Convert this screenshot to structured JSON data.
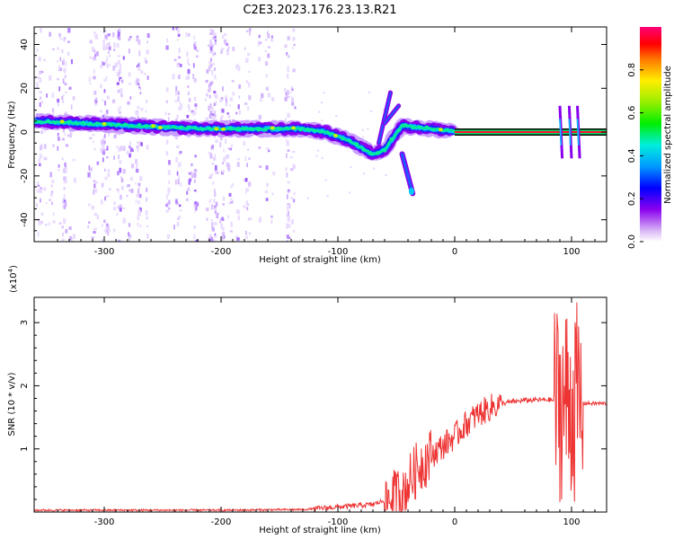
{
  "title": "C2E3.2023.176.23.13.R21",
  "chart_data": [
    {
      "type": "heatmap",
      "xlabel": "Height of straight line (km)",
      "ylabel": "Frequency (Hz)",
      "xlim": [
        -360,
        130
      ],
      "ylim": [
        -50,
        48
      ],
      "x_ticks": [
        -300,
        -200,
        -100,
        0,
        100
      ],
      "y_ticks": [
        -40,
        -20,
        0,
        20,
        40
      ],
      "colorbar": {
        "label": "Normalized spectral amplitude",
        "range": [
          0,
          1
        ],
        "ticks": [
          "0.0",
          "0.2",
          "0.4",
          "0.6",
          "0.8"
        ],
        "colormap": "rainbow (white-purple-blue-cyan-green-yellow-red-magenta)"
      },
      "carrier_trace": [
        {
          "x": -360,
          "y": 5
        },
        {
          "x": -320,
          "y": 4
        },
        {
          "x": -280,
          "y": 3
        },
        {
          "x": -240,
          "y": 2
        },
        {
          "x": -200,
          "y": 1.5
        },
        {
          "x": -160,
          "y": 1.5
        },
        {
          "x": -130,
          "y": 1.5
        },
        {
          "x": -110,
          "y": 0
        },
        {
          "x": -90,
          "y": -4
        },
        {
          "x": -70,
          "y": -10
        },
        {
          "x": -60,
          "y": -8
        },
        {
          "x": -45,
          "y": 3
        },
        {
          "x": -30,
          "y": 2
        },
        {
          "x": -10,
          "y": 1
        },
        {
          "x": 0,
          "y": 0.5
        },
        {
          "x": 130,
          "y": 0
        }
      ],
      "noise_region_x": [
        -360,
        -135
      ]
    },
    {
      "type": "line",
      "xlabel": "Height of straight line (km)",
      "ylabel": "SNR (10 * v/v)",
      "y_scale_label": "(x10",
      "y_scale_exp": "4",
      "xlim": [
        -360,
        130
      ],
      "ylim": [
        0,
        3.4
      ],
      "x_ticks": [
        -300,
        -200,
        -100,
        0,
        100
      ],
      "y_ticks": [
        1,
        2,
        3
      ],
      "series_color": "#ee3333",
      "envelope": [
        {
          "x": -360,
          "y": 0.03
        },
        {
          "x": -200,
          "y": 0.03
        },
        {
          "x": -130,
          "y": 0.04
        },
        {
          "x": -100,
          "y": 0.08
        },
        {
          "x": -70,
          "y": 0.12
        },
        {
          "x": -50,
          "y": 0.25
        },
        {
          "x": -40,
          "y": 0.45
        },
        {
          "x": -30,
          "y": 0.75
        },
        {
          "x": -20,
          "y": 0.9
        },
        {
          "x": -10,
          "y": 1.05
        },
        {
          "x": 0,
          "y": 1.2
        },
        {
          "x": 10,
          "y": 1.4
        },
        {
          "x": 20,
          "y": 1.55
        },
        {
          "x": 30,
          "y": 1.65
        },
        {
          "x": 40,
          "y": 1.72
        },
        {
          "x": 60,
          "y": 1.77
        },
        {
          "x": 80,
          "y": 1.78
        },
        {
          "x": 90,
          "y": 1.75
        },
        {
          "x": 110,
          "y": 1.72
        },
        {
          "x": 130,
          "y": 1.72
        }
      ]
    }
  ]
}
